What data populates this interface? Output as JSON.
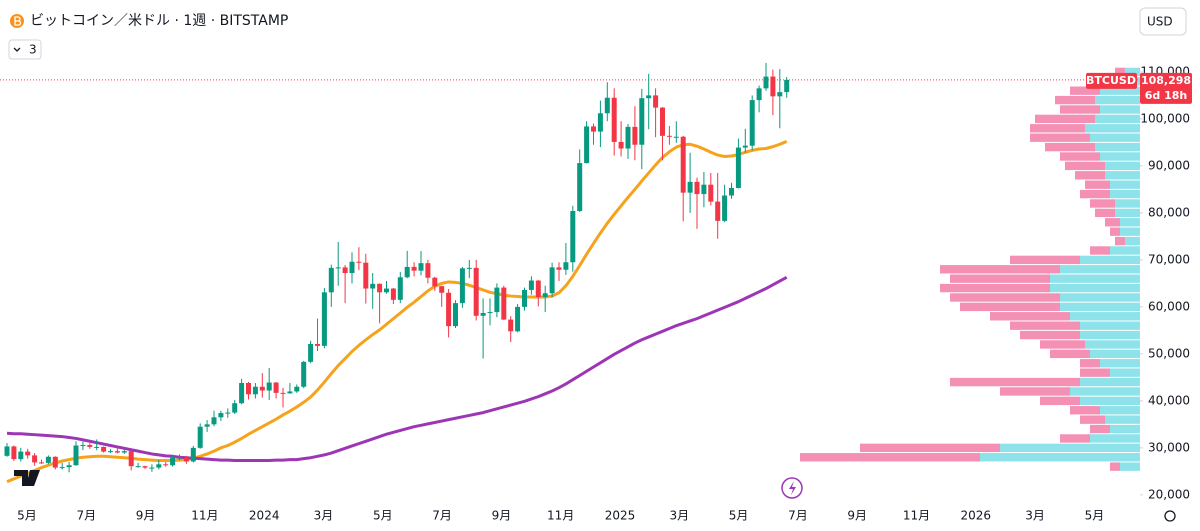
{
  "header": {
    "title": "ビットコイン／米ドル · 1週 · BITSTAMP",
    "indicators_count": 3,
    "currency": "USD"
  },
  "chart_data": {
    "type": "candlestick",
    "up_color": "#089981",
    "down_color": "#f23645",
    "open": [
      28300,
      30300,
      27600,
      29200,
      28400,
      26900,
      26800,
      28100,
      25800,
      25900,
      26300,
      30500,
      30600,
      30200,
      30200,
      29200,
      29300,
      29000,
      29300,
      26100,
      26100,
      25800,
      25800,
      26500,
      26300,
      27900,
      27900,
      27100,
      30000,
      34500,
      35000,
      36500,
      37400,
      37500,
      39500,
      43800,
      41400,
      43000,
      42200,
      43900,
      41700,
      41600,
      42000,
      43000,
      48300,
      52100,
      51700,
      63100,
      68300,
      68400,
      67200,
      69600,
      69400,
      63900,
      64900,
      63100,
      63900,
      61500,
      66300,
      68500,
      67700,
      69300,
      66200,
      64400,
      63000,
      55900,
      60800,
      68200,
      68300,
      58100,
      58700,
      58900,
      64100,
      57300,
      54800,
      60000,
      63600,
      65600,
      62100,
      62900,
      68400,
      67900,
      69500,
      80400,
      90600,
      98400,
      97300,
      101200,
      104500,
      95100,
      93700,
      98300,
      94500,
      104400,
      105000,
      102400,
      96400,
      96200,
      96200,
      84300,
      86600,
      84000,
      86000,
      82400,
      78300,
      83700,
      85300,
      93900,
      94300,
      104000,
      106500,
      109000,
      104800,
      105700
    ],
    "high": [
      31000,
      30500,
      30000,
      29800,
      28900,
      27500,
      28400,
      28200,
      26800,
      27000,
      31400,
      31300,
      31000,
      31800,
      30300,
      29700,
      30100,
      29700,
      29400,
      26800,
      26200,
      26500,
      27400,
      27000,
      28500,
      28600,
      28300,
      30400,
      35200,
      35900,
      37900,
      37900,
      38400,
      40200,
      44700,
      44000,
      43800,
      45900,
      47000,
      44000,
      42800,
      43800,
      43500,
      48500,
      52800,
      57500,
      64000,
      69000,
      73800,
      68900,
      71600,
      72700,
      71300,
      67200,
      65000,
      65500,
      64000,
      67400,
      71900,
      69500,
      71900,
      70000,
      66400,
      64500,
      63800,
      61400,
      68500,
      70000,
      70000,
      61800,
      61800,
      65000,
      64500,
      58000,
      60600,
      64100,
      66500,
      65700,
      64500,
      69400,
      69500,
      73600,
      81500,
      93500,
      99500,
      99000,
      103900,
      107800,
      106500,
      99500,
      98900,
      102700,
      106400,
      109600,
      106500,
      102500,
      98500,
      99500,
      96400,
      92800,
      87500,
      88700,
      88500,
      88500,
      86000,
      86400,
      95800,
      97900,
      105000,
      107100,
      111900,
      110500,
      110600,
      108900
    ],
    "low": [
      28100,
      27200,
      27100,
      27700,
      26200,
      26600,
      26500,
      25400,
      25400,
      24800,
      26200,
      29500,
      29800,
      29500,
      29000,
      28900,
      28800,
      28700,
      25200,
      25800,
      25500,
      24900,
      25400,
      26000,
      26000,
      27400,
      26600,
      26900,
      29800,
      33400,
      34600,
      35700,
      36400,
      37200,
      39300,
      40300,
      40500,
      40700,
      40200,
      40500,
      38600,
      41500,
      41700,
      42700,
      48000,
      50600,
      51200,
      60000,
      64500,
      60800,
      65000,
      67800,
      60700,
      59600,
      56500,
      62800,
      60600,
      60800,
      66100,
      66500,
      66700,
      65000,
      63400,
      60000,
      53500,
      55500,
      59800,
      66100,
      57100,
      49000,
      56100,
      57800,
      57200,
      52500,
      54600,
      59200,
      62600,
      60100,
      58900,
      62000,
      65500,
      66800,
      67500,
      80200,
      90500,
      94500,
      94000,
      99500,
      92200,
      92000,
      91500,
      91200,
      89300,
      97800,
      96100,
      91200,
      94500,
      94900,
      78200,
      80000,
      76600,
      81200,
      81600,
      74500,
      78000,
      83000,
      85200,
      92800,
      93300,
      101400,
      106000,
      100800,
      98000,
      104500
    ],
    "close": [
      30300,
      27600,
      29200,
      28400,
      26900,
      26800,
      28100,
      25800,
      25900,
      26300,
      30500,
      30600,
      30200,
      30200,
      29200,
      29300,
      29000,
      29300,
      26100,
      26100,
      25800,
      25800,
      26500,
      26300,
      27900,
      27900,
      27100,
      30000,
      34500,
      35000,
      36500,
      37400,
      37500,
      39500,
      43800,
      41400,
      43000,
      42200,
      43900,
      41700,
      41600,
      42000,
      43000,
      48300,
      52100,
      51700,
      63100,
      68300,
      68400,
      67200,
      69600,
      69400,
      63900,
      64900,
      63100,
      63900,
      61500,
      66300,
      68500,
      67700,
      69300,
      66200,
      64400,
      63000,
      55900,
      60800,
      68200,
      68300,
      58100,
      58700,
      58900,
      64100,
      57300,
      54800,
      60000,
      63600,
      65600,
      62100,
      62900,
      68400,
      67900,
      69500,
      80400,
      90600,
      98400,
      97300,
      101200,
      104500,
      95100,
      93700,
      98300,
      94500,
      104400,
      105000,
      102400,
      96400,
      96200,
      96200,
      84300,
      86600,
      84000,
      86000,
      82400,
      78300,
      83700,
      85300,
      93900,
      94300,
      104000,
      106500,
      109000,
      104800,
      105700,
      108298
    ],
    "moving_averages": [
      {
        "color": "#f7a21b",
        "values": [
          22800,
          23400,
          24000,
          24600,
          25200,
          25800,
          26300,
          26800,
          27200,
          27500,
          27800,
          28000,
          28100,
          28200,
          28200,
          28100,
          28000,
          27900,
          27800,
          27600,
          27500,
          27400,
          27300,
          27300,
          27300,
          27400,
          27500,
          27800,
          28200,
          28700,
          29300,
          30000,
          30500,
          31200,
          32000,
          32900,
          33700,
          34500,
          35300,
          36100,
          37000,
          37800,
          38700,
          39700,
          40800,
          42300,
          44000,
          45800,
          47500,
          49000,
          50500,
          51800,
          53000,
          54100,
          55100,
          56300,
          57500,
          58700,
          59900,
          61000,
          62200,
          63400,
          64400,
          65000,
          65300,
          65200,
          65000,
          64600,
          64100,
          63600,
          63100,
          62800,
          62500,
          62300,
          62200,
          62100,
          62100,
          62100,
          62100,
          62300,
          63000,
          64500,
          66500,
          68800,
          71200,
          73500,
          75700,
          77800,
          79700,
          81500,
          83300,
          85000,
          86800,
          88500,
          90200,
          91800,
          93000,
          94000,
          94500,
          94600,
          94200,
          93600,
          92900,
          92300,
          92000,
          92100,
          92400,
          92900,
          93300,
          93600,
          93700,
          94100,
          94600,
          95200
        ]
      },
      {
        "color": "#9c36b5",
        "values": [
          33100,
          33000,
          33000,
          32900,
          32800,
          32700,
          32600,
          32500,
          32400,
          32200,
          32000,
          31700,
          31400,
          31100,
          30800,
          30500,
          30200,
          29900,
          29600,
          29300,
          29000,
          28700,
          28500,
          28300,
          28200,
          28000,
          27900,
          27800,
          27700,
          27600,
          27500,
          27400,
          27400,
          27300,
          27300,
          27300,
          27300,
          27300,
          27300,
          27400,
          27400,
          27500,
          27500,
          27700,
          27900,
          28200,
          28500,
          28900,
          29400,
          29900,
          30400,
          30900,
          31400,
          31900,
          32400,
          32900,
          33300,
          33700,
          34100,
          34500,
          34800,
          35100,
          35400,
          35700,
          36000,
          36300,
          36600,
          36900,
          37200,
          37500,
          37900,
          38300,
          38700,
          39100,
          39500,
          39900,
          40400,
          40900,
          41500,
          42100,
          42800,
          43600,
          44500,
          45400,
          46300,
          47200,
          48100,
          49000,
          49900,
          50700,
          51500,
          52300,
          53000,
          53600,
          54200,
          54800,
          55400,
          56000,
          56500,
          57000,
          57500,
          58100,
          58700,
          59300,
          59900,
          60500,
          61100,
          61800,
          62500,
          63200,
          63900,
          64700,
          65500,
          66300
        ]
      }
    ],
    "volume_profile": {
      "up_color": "#8ee3ea",
      "down_color": "#f590b5",
      "price": [
        25000,
        27000,
        29000,
        31000,
        33000,
        35000,
        37000,
        39000,
        41000,
        43000,
        45000,
        47000,
        49000,
        51000,
        53000,
        55000,
        57000,
        59000,
        61000,
        63000,
        65000,
        67000,
        69000,
        71000,
        73000,
        75000,
        77000,
        79000,
        81000,
        83000,
        85000,
        87000,
        89000,
        91000,
        93000,
        95000,
        97000,
        99000,
        101000,
        103000,
        105000,
        107000,
        109000
      ],
      "up": [
        20,
        160,
        140,
        50,
        30,
        35,
        40,
        60,
        70,
        60,
        30,
        40,
        50,
        55,
        60,
        60,
        70,
        80,
        80,
        90,
        90,
        80,
        60,
        30,
        15,
        20,
        20,
        25,
        25,
        30,
        30,
        35,
        35,
        40,
        45,
        50,
        55,
        45,
        40,
        45,
        40,
        30,
        15
      ],
      "down": [
        10,
        180,
        140,
        30,
        20,
        25,
        30,
        40,
        70,
        130,
        30,
        20,
        40,
        45,
        60,
        70,
        80,
        100,
        110,
        110,
        100,
        120,
        70,
        20,
        10,
        10,
        15,
        20,
        25,
        30,
        25,
        30,
        40,
        40,
        50,
        60,
        55,
        60,
        40,
        40,
        30,
        20,
        10
      ]
    },
    "ylim": [
      17200,
      125300
    ],
    "yticks": [
      {
        "value": 20000,
        "label": "20,000"
      },
      {
        "value": 30000,
        "label": "30,000"
      },
      {
        "value": 40000,
        "label": "40,000"
      },
      {
        "value": 50000,
        "label": "50,000"
      },
      {
        "value": 60000,
        "label": "60,000"
      },
      {
        "value": 70000,
        "label": "70,000"
      },
      {
        "value": 80000,
        "label": "80,000"
      },
      {
        "value": 90000,
        "label": "90,000"
      },
      {
        "value": 100000,
        "label": "100,000"
      },
      {
        "value": 110000,
        "label": "110,000"
      }
    ],
    "xticks": [
      "5月",
      "7月",
      "9月",
      "11月",
      "2024",
      "3月",
      "5月",
      "7月",
      "9月",
      "11月",
      "2025",
      "3月",
      "5月",
      "7月",
      "9月",
      "11月",
      "2026",
      "3月",
      "5月"
    ],
    "last": {
      "symbol": "BTCUSD",
      "price": "108,298",
      "countdown": "6d 18h"
    }
  }
}
